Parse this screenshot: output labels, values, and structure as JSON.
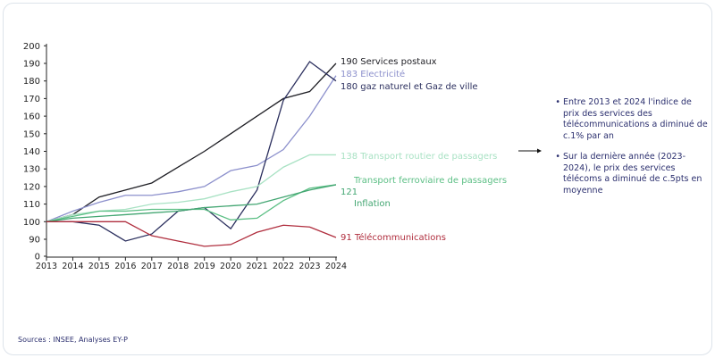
{
  "chart_data": {
    "type": "line",
    "x": [
      2013,
      2014,
      2015,
      2016,
      2017,
      2018,
      2019,
      2020,
      2021,
      2022,
      2023,
      2024
    ],
    "yticks": [
      0,
      90,
      100,
      110,
      120,
      130,
      140,
      150,
      160,
      170,
      180,
      190,
      200
    ],
    "ylim": [
      0,
      200
    ],
    "grid": false,
    "series": [
      {
        "name": "Services postaux",
        "end_label": "190",
        "color": "#1e1e24",
        "values": [
          100,
          104,
          114,
          118,
          122,
          131,
          140,
          150,
          160,
          170,
          174,
          190
        ]
      },
      {
        "name": "Electricité",
        "end_label": "183",
        "color": "#8c90cc",
        "values": [
          100,
          106,
          111,
          115,
          115,
          117,
          120,
          129,
          132,
          141,
          160,
          183
        ]
      },
      {
        "name": "gaz naturel et Gaz de ville",
        "end_label": "180",
        "color": "#2b2f5e",
        "values": [
          100,
          100,
          98,
          89,
          93,
          106,
          108,
          96,
          118,
          169,
          191,
          180
        ]
      },
      {
        "name": "Transport routier de passagers",
        "end_label": "138",
        "color": "#a9e2c4",
        "values": [
          100,
          104,
          106,
          107,
          110,
          111,
          113,
          117,
          120,
          131,
          138,
          138
        ]
      },
      {
        "name": "Transport ferroviaire de passagers",
        "end_label": "121",
        "color": "#5cbf85",
        "values": [
          100,
          103,
          106,
          106,
          107,
          107,
          107,
          101,
          102,
          112,
          119,
          121
        ]
      },
      {
        "name": "Inflation",
        "end_label": "",
        "color": "#43a672",
        "values": [
          100,
          102,
          103,
          104,
          105,
          106,
          108,
          109,
          110,
          114,
          118,
          121
        ]
      },
      {
        "name": "Télécommunications",
        "end_label": "91",
        "color": "#b02e3e",
        "values": [
          100,
          100,
          100,
          100,
          92,
          89,
          86,
          87,
          94,
          98,
          97,
          91
        ]
      }
    ]
  },
  "labels": {
    "postal": "190  Services postaux",
    "elec": "183  Electricité",
    "gas": "180  gaz naturel et Gaz de ville",
    "road": "138 Transport routier de passagers",
    "rail": "Transport ferroviaire de passagers",
    "shared": "121",
    "inflation": "Inflation",
    "telecom": "91 Télécommunications"
  },
  "notes": [
    "Entre 2013 et 2024 l'indice de prix des services des télécommunications a diminué de c.1% par an",
    "Sur la dernière année (2023-2024), le prix des services télécoms a diminué de c.5pts en moyenne"
  ],
  "source": "Sources : INSEE, Analyses EY-P"
}
